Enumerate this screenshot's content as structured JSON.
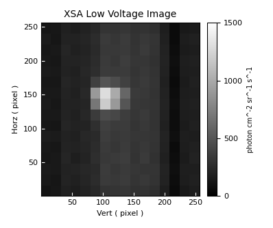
{
  "chart_data": {
    "type": "heatmap",
    "title": "XSA Low Voltage Image",
    "x_label": "Vert ( pixel )",
    "y_label": "Horz ( pixel )",
    "xlim": [
      0,
      256
    ],
    "ylim": [
      0,
      256
    ],
    "xticks": [
      50,
      100,
      150,
      200,
      250
    ],
    "yticks": [
      50,
      100,
      150,
      200,
      250
    ],
    "x_edges": [
      0,
      16,
      32,
      48,
      64,
      80,
      96,
      112,
      128,
      144,
      160,
      176,
      192,
      208,
      224,
      240,
      256
    ],
    "y_edges": [
      0,
      16,
      32,
      48,
      64,
      80,
      96,
      112,
      128,
      144,
      160,
      176,
      192,
      208,
      224,
      240,
      256
    ],
    "cells": [
      [
        120,
        140,
        190,
        170,
        200,
        240,
        300,
        310,
        320,
        290,
        300,
        280,
        180,
        70,
        150,
        170
      ],
      [
        150,
        130,
        210,
        190,
        220,
        260,
        340,
        330,
        350,
        310,
        330,
        300,
        200,
        80,
        170,
        190
      ],
      [
        160,
        150,
        200,
        210,
        230,
        250,
        350,
        320,
        340,
        320,
        310,
        310,
        210,
        90,
        180,
        180
      ],
      [
        140,
        150,
        220,
        180,
        210,
        270,
        330,
        340,
        360,
        300,
        340,
        290,
        190,
        80,
        160,
        200
      ],
      [
        150,
        140,
        210,
        200,
        220,
        260,
        340,
        320,
        350,
        310,
        330,
        300,
        200,
        70,
        170,
        190
      ],
      [
        170,
        160,
        200,
        190,
        230,
        250,
        360,
        330,
        340,
        320,
        320,
        310,
        210,
        90,
        180,
        170
      ],
      [
        140,
        130,
        220,
        200,
        210,
        280,
        380,
        350,
        350,
        310,
        330,
        300,
        190,
        80,
        160,
        190
      ],
      [
        150,
        150,
        210,
        190,
        230,
        350,
        450,
        420,
        360,
        320,
        340,
        300,
        200,
        80,
        170,
        180
      ],
      [
        160,
        140,
        200,
        200,
        220,
        700,
        1200,
        900,
        500,
        330,
        320,
        310,
        210,
        90,
        180,
        190
      ],
      [
        150,
        150,
        210,
        190,
        240,
        900,
        1300,
        1000,
        600,
        340,
        330,
        300,
        200,
        80,
        170,
        180
      ],
      [
        140,
        140,
        220,
        200,
        220,
        380,
        500,
        450,
        380,
        320,
        340,
        310,
        190,
        70,
        160,
        190
      ],
      [
        160,
        150,
        200,
        190,
        230,
        270,
        350,
        340,
        350,
        310,
        330,
        300,
        200,
        80,
        170,
        180
      ],
      [
        150,
        140,
        210,
        210,
        220,
        260,
        340,
        320,
        360,
        320,
        320,
        290,
        210,
        90,
        180,
        190
      ],
      [
        140,
        150,
        220,
        190,
        210,
        250,
        330,
        330,
        340,
        310,
        340,
        300,
        200,
        80,
        160,
        170
      ],
      [
        160,
        130,
        200,
        200,
        220,
        260,
        340,
        320,
        350,
        300,
        330,
        310,
        190,
        70,
        170,
        190
      ],
      [
        130,
        140,
        190,
        170,
        200,
        240,
        310,
        300,
        320,
        290,
        300,
        280,
        180,
        70,
        150,
        160
      ]
    ],
    "colorbar_label": "photon cm^-2 sr^-1 s^-1",
    "colorbar_range": [
      0,
      1500
    ],
    "colorbar_ticks": [
      0,
      500,
      1000,
      1500
    ]
  }
}
